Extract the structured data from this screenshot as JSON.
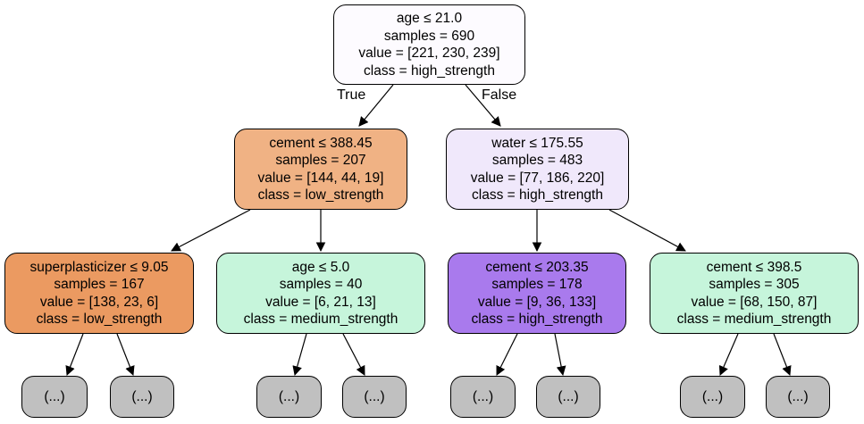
{
  "tree": {
    "edge_labels": {
      "true": "True",
      "false": "False"
    },
    "nodes": [
      {
        "id": "root",
        "lines": [
          "age ≤ 21.0",
          "samples = 690",
          "value = [221, 230, 239]",
          "class = high_strength"
        ],
        "fill": "#fdfbff"
      },
      {
        "id": "n1",
        "lines": [
          "cement ≤ 388.45",
          "samples = 207",
          "value = [144, 44, 19]",
          "class = low_strength"
        ],
        "fill": "#f0b284"
      },
      {
        "id": "n2",
        "lines": [
          "water ≤ 175.55",
          "samples = 483",
          "value = [77, 186, 220]",
          "class = high_strength"
        ],
        "fill": "#f0e8fb"
      },
      {
        "id": "n3",
        "lines": [
          "superplasticizer ≤ 9.05",
          "samples = 167",
          "value = [138, 23, 6]",
          "class = low_strength"
        ],
        "fill": "#eb9a61"
      },
      {
        "id": "n4",
        "lines": [
          "age ≤ 5.0",
          "samples = 40",
          "value = [6, 21, 13]",
          "class = medium_strength"
        ],
        "fill": "#c6f5db"
      },
      {
        "id": "n5",
        "lines": [
          "cement ≤ 203.35",
          "samples = 178",
          "value = [9, 36, 133]",
          "class = high_strength"
        ],
        "fill": "#a97aed"
      },
      {
        "id": "n6",
        "lines": [
          "cement ≤ 398.5",
          "samples = 305",
          "value = [68, 150, 87]",
          "class = medium_strength"
        ],
        "fill": "#c6f5db"
      }
    ],
    "leaf_text": "(...)",
    "leaf_fill": "#c0c0c0"
  }
}
